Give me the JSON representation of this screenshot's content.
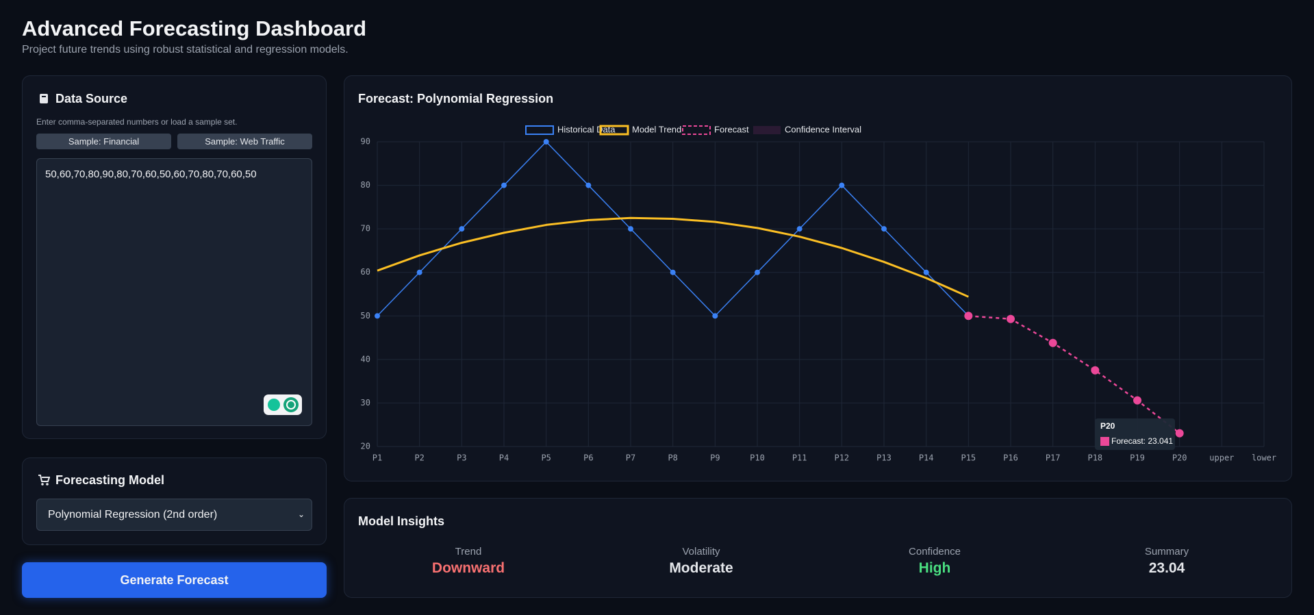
{
  "header": {
    "title": "Advanced Forecasting Dashboard",
    "subtitle": "Project future trends using robust statistical and regression models."
  },
  "data_source": {
    "title": "Data Source",
    "hint": "Enter comma-separated numbers or load a sample set.",
    "buttons": [
      "Sample: Financial",
      "Sample: Web Traffic"
    ],
    "input": "50,60,70,80,90,80,70,60,50,60,70,80,70,60,50"
  },
  "model": {
    "title": "Forecasting Model",
    "selected": "Polynomial Regression (2nd order)"
  },
  "action": {
    "label": "Generate Forecast"
  },
  "chart_data": {
    "type": "line",
    "title": "Forecast: Polynomial Regression",
    "categories": [
      "P1",
      "P2",
      "P3",
      "P4",
      "P5",
      "P6",
      "P7",
      "P8",
      "P9",
      "P10",
      "P11",
      "P12",
      "P13",
      "P14",
      "P15",
      "P16",
      "P17",
      "P18",
      "P19",
      "P20",
      "upper",
      "lower"
    ],
    "series": [
      {
        "name": "Historical Data",
        "color": "#3b82f6",
        "values": [
          50,
          60,
          70,
          80,
          90,
          80,
          70,
          60,
          50,
          60,
          70,
          80,
          70,
          60,
          50,
          null,
          null,
          null,
          null,
          null,
          null,
          null
        ]
      },
      {
        "name": "Model Trend",
        "color": "#fbbf24",
        "values": [
          60.4,
          63.9,
          66.8,
          69.1,
          70.9,
          72.0,
          72.5,
          72.3,
          71.6,
          70.2,
          68.2,
          65.6,
          62.4,
          58.7,
          54.4,
          null,
          null,
          null,
          null,
          null,
          null,
          null
        ]
      },
      {
        "name": "Forecast",
        "color": "#ec4899",
        "values": [
          null,
          null,
          null,
          null,
          null,
          null,
          null,
          null,
          null,
          null,
          null,
          null,
          null,
          null,
          50,
          49.3,
          43.8,
          37.5,
          30.6,
          23.041,
          null,
          null
        ]
      },
      {
        "name": "Confidence Interval",
        "color": "#2a1a33",
        "values": [
          null,
          null,
          null,
          null,
          null,
          null,
          null,
          null,
          null,
          null,
          null,
          null,
          null,
          null,
          null,
          null,
          null,
          null,
          null,
          null,
          null,
          null
        ]
      }
    ],
    "ylim": [
      20,
      90
    ],
    "yticks": [
      20,
      30,
      40,
      50,
      60,
      70,
      80,
      90
    ],
    "grid": true,
    "tooltip": {
      "title": "P20",
      "text": "Forecast: 23.041"
    }
  },
  "insights": {
    "title": "Model Insights",
    "items": [
      {
        "label": "Trend",
        "value": "Downward",
        "color": "#f87171"
      },
      {
        "label": "Volatility",
        "value": "Moderate",
        "color": "#e5e7eb"
      },
      {
        "label": "Confidence",
        "value": "High",
        "color": "#4ade80"
      },
      {
        "label": "Summary",
        "value": "23.04",
        "color": "#e5e7eb"
      }
    ]
  }
}
